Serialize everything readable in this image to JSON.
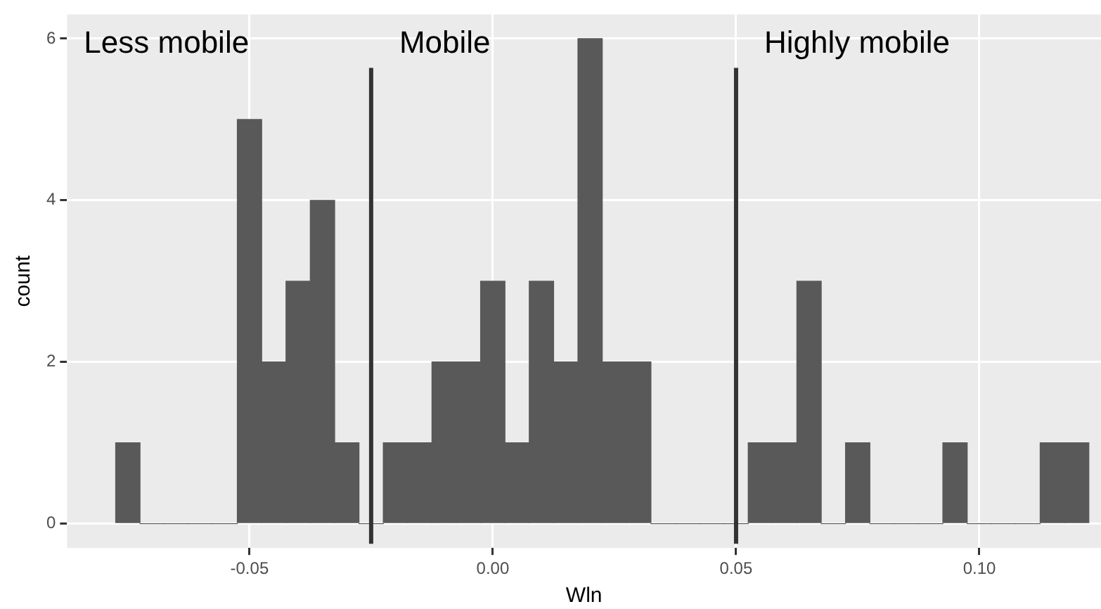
{
  "chart_data": {
    "type": "histogram",
    "xlabel": "Wln",
    "ylabel": "count",
    "bins": [
      -0.0775,
      -0.0725,
      -0.0675,
      -0.0625,
      -0.0575,
      -0.0525,
      -0.0475,
      -0.0425,
      -0.0375,
      -0.0325,
      -0.0275,
      -0.0225,
      -0.0175,
      -0.0125,
      -0.0075,
      -0.0025,
      0.0025,
      0.0075,
      0.0125,
      0.0175,
      0.0225,
      0.0275,
      0.0325,
      0.0375,
      0.0425,
      0.0475,
      0.0525,
      0.0575,
      0.0625,
      0.0675,
      0.0725,
      0.0775,
      0.0825,
      0.0875,
      0.0925,
      0.0975,
      0.1025,
      0.1075,
      0.1125,
      0.1175,
      0.1225
    ],
    "values": [
      1,
      0,
      0,
      0,
      0,
      5,
      2,
      3,
      4,
      1,
      0,
      1,
      1,
      2,
      2,
      3,
      1,
      3,
      2,
      6,
      2,
      2,
      0,
      0,
      0,
      0,
      1,
      1,
      3,
      0,
      1,
      0,
      0,
      0,
      1,
      0,
      0,
      0,
      1,
      1
    ],
    "color": "#595959",
    "xlim": [
      -0.0875,
      0.125
    ],
    "xticks": [
      -0.05,
      {
        "value": 0,
        "label": "0.00"
      },
      0.05,
      {
        "value": 0.1,
        "label": "0.10"
      }
    ],
    "ylim": [
      -0.3,
      6.3
    ],
    "yticks": [
      0,
      2,
      4,
      6
    ],
    "grid": true,
    "legend": false,
    "ref_lines": [
      {
        "axis": "x",
        "value": -0.025,
        "color": "#333333"
      },
      {
        "axis": "x",
        "value": 0.05,
        "color": "#333333"
      }
    ],
    "annotations": [
      "Less mobile",
      "Mobile",
      "Highly mobile"
    ]
  }
}
